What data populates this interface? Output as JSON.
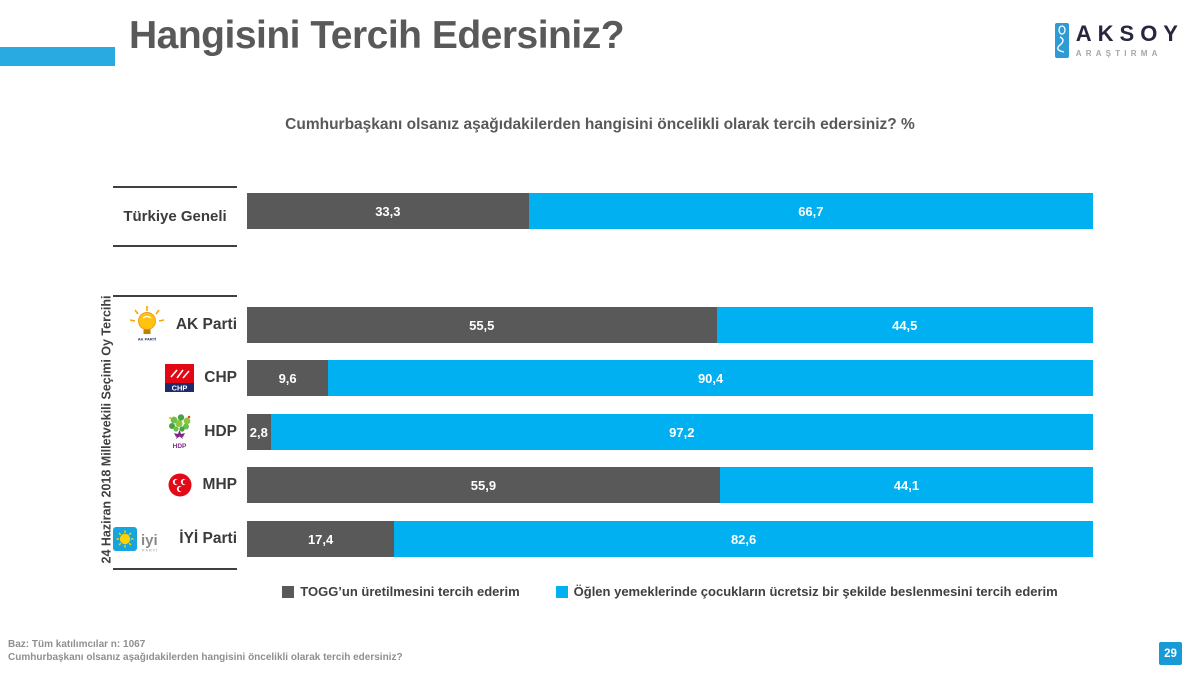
{
  "header": {
    "title": "Hangisini Tercih Edersiniz?",
    "accent_color": "#29ABE2"
  },
  "logo": {
    "name": "AKSOY",
    "subtext": "ARAŞTIRMA"
  },
  "subtitle": "Cumhurbaşkanı olsanız aşağıdakilerden hangisini öncelikli olarak tercih edersiniz? %",
  "chart_data": {
    "type": "bar",
    "orientation": "horizontal",
    "stacked": true,
    "unit": "%",
    "title": "Cumhurbaşkanı olsanız aşağıdakilerden hangisini öncelikli olarak tercih edersiniz? %",
    "group_label": "24 Haziran 2018 Milletvekili Seçimi Oy Tercihi",
    "categories": [
      "Türkiye Geneli",
      "AK Parti",
      "CHP",
      "HDP",
      "MHP",
      "İYİ Parti"
    ],
    "icons": [
      "",
      "akparti",
      "chp",
      "hdp",
      "mhp",
      "iyi"
    ],
    "series": [
      {
        "name": "TOGG’un üretilmesini tercih ederim",
        "color": "#595959",
        "values": [
          33.3,
          55.5,
          9.6,
          2.8,
          55.9,
          17.4
        ]
      },
      {
        "name": "Öğlen yemeklerinde çocukların ücretsiz bir şekilde beslenmesini tercih ederim",
        "color": "#00B0F0",
        "values": [
          66.7,
          44.5,
          90.4,
          97.2,
          44.1,
          82.6
        ]
      }
    ],
    "value_labels": [
      [
        "33,3",
        "66,7"
      ],
      [
        "55,5",
        "44,5"
      ],
      [
        "9,6",
        "90,4"
      ],
      [
        "2,8",
        "97,2"
      ],
      [
        "55,9",
        "44,1"
      ],
      [
        "17,4",
        "82,6"
      ]
    ],
    "xlim": [
      0,
      100
    ],
    "legend_position": "bottom",
    "grid": false
  },
  "footer": {
    "line1": "Baz: Tüm katılımcılar n: 1067",
    "line2": "Cumhurbaşkanı olsanız aşağıdakilerden hangisini öncelikli olarak tercih edersiniz?"
  },
  "page_number": "29"
}
